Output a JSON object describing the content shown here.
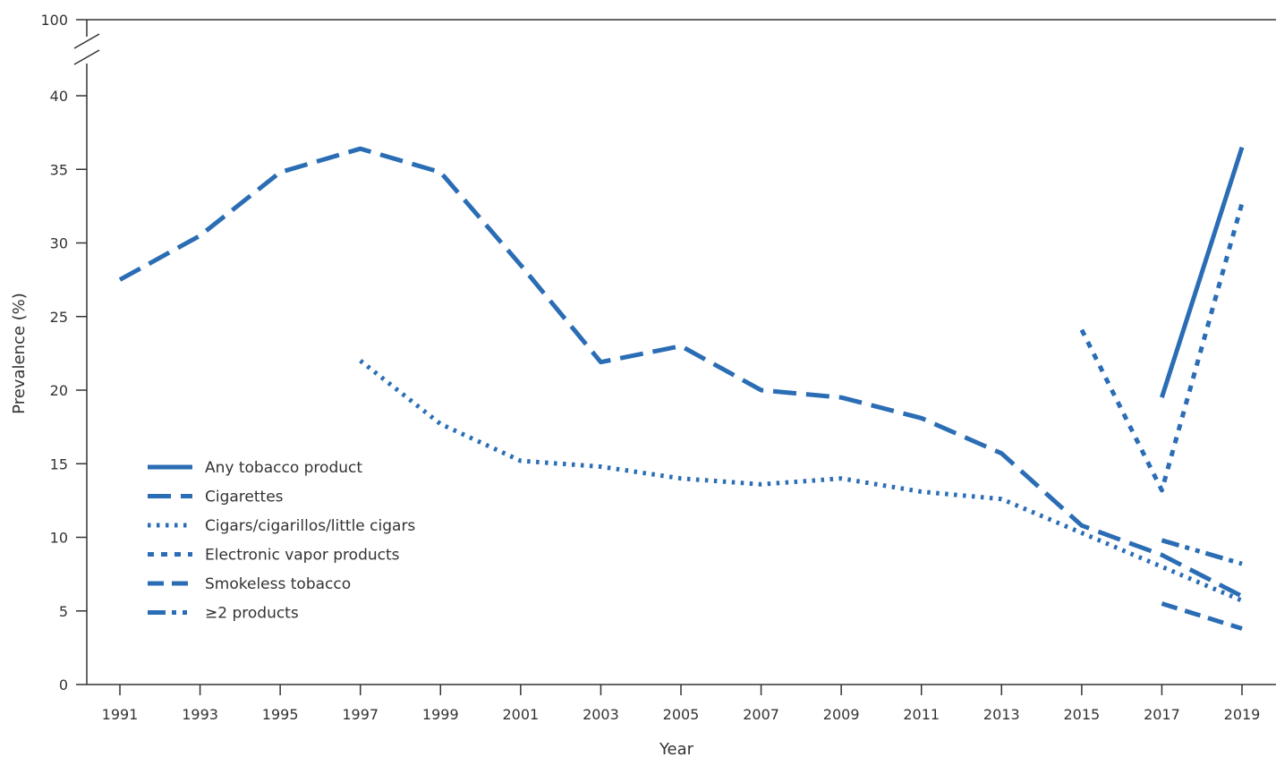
{
  "chart_data": {
    "type": "line",
    "xlabel": "Year",
    "ylabel": "Prevalence (%)",
    "x": [
      1991,
      1993,
      1995,
      1997,
      1999,
      2001,
      2003,
      2005,
      2007,
      2009,
      2011,
      2013,
      2015,
      2017,
      2019
    ],
    "xticks": [
      "1991",
      "1993",
      "1995",
      "1997",
      "1999",
      "2001",
      "2003",
      "2005",
      "2007",
      "2009",
      "2011",
      "2013",
      "2015",
      "2017",
      "2019"
    ],
    "yticks": [
      "0",
      "5",
      "10",
      "15",
      "20",
      "25",
      "30",
      "35",
      "40"
    ],
    "ytick_break_top": "100",
    "ylim": [
      0,
      100
    ],
    "axis_break": [
      40,
      100
    ],
    "legend_position": "lower-left",
    "color": "#2a6db5",
    "series": [
      {
        "name": "Any tobacco product",
        "style": "solid",
        "x": [
          2017,
          2019
        ],
        "values": [
          19.5,
          36.5
        ]
      },
      {
        "name": "Cigarettes",
        "style": "long-dash",
        "x": [
          1991,
          1993,
          1995,
          1997,
          1999,
          2001,
          2003,
          2005,
          2007,
          2009,
          2011,
          2013,
          2015,
          2017,
          2019
        ],
        "values": [
          27.5,
          30.5,
          34.8,
          36.4,
          34.8,
          28.5,
          21.9,
          23.0,
          20.0,
          19.5,
          18.1,
          15.7,
          10.8,
          8.8,
          6.0
        ]
      },
      {
        "name": "Cigars/cigarillos/little cigars",
        "style": "dotted",
        "x": [
          1997,
          1999,
          2001,
          2003,
          2005,
          2007,
          2009,
          2011,
          2013,
          2015,
          2017,
          2019
        ],
        "values": [
          22.0,
          17.7,
          15.2,
          14.8,
          14.0,
          13.6,
          14.0,
          13.1,
          12.6,
          10.3,
          8.0,
          5.7
        ]
      },
      {
        "name": "Electronic vapor products",
        "style": "short-dash",
        "x": [
          2015,
          2017,
          2019
        ],
        "values": [
          24.1,
          13.2,
          32.7
        ]
      },
      {
        "name": "Smokeless tobacco",
        "style": "dash",
        "x": [
          2017,
          2019
        ],
        "values": [
          5.5,
          3.8
        ]
      },
      {
        "name": "≥2 products",
        "style": "dash-dot-dot",
        "x": [
          2017,
          2019
        ],
        "values": [
          9.8,
          8.2
        ]
      }
    ]
  }
}
